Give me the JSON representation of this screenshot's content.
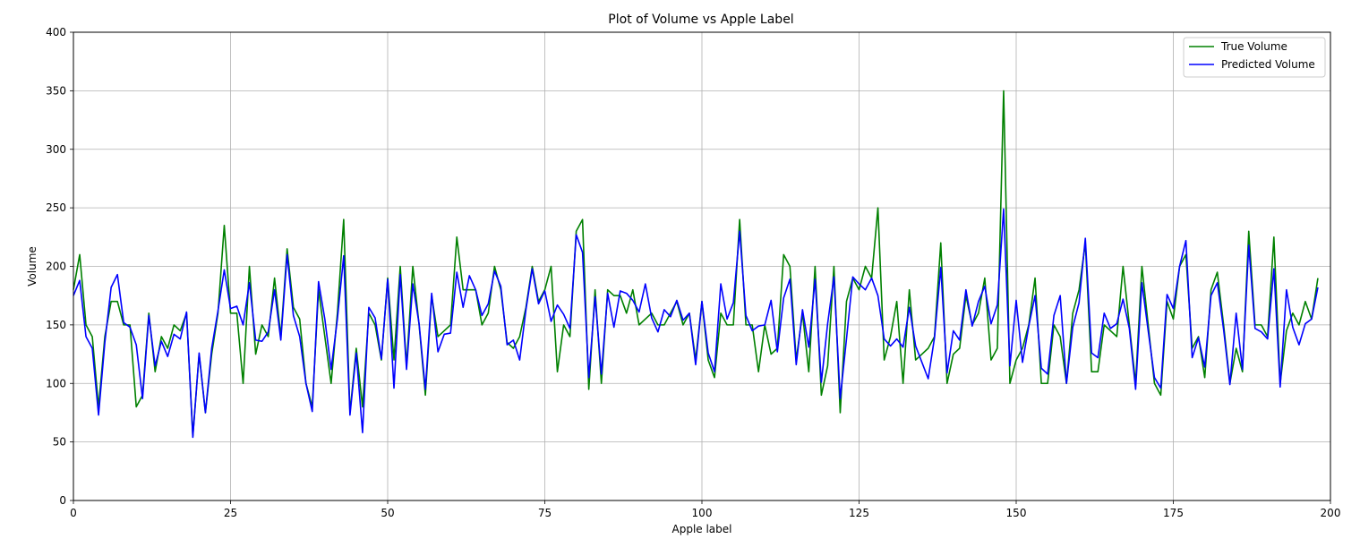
{
  "chart_data": {
    "type": "line",
    "title": "Plot of Volume vs Apple Label",
    "xlabel": "Apple label",
    "ylabel": "Volume",
    "xlim": [
      0,
      200
    ],
    "ylim": [
      0,
      400
    ],
    "xticks": [
      0,
      25,
      50,
      75,
      100,
      125,
      150,
      175,
      200
    ],
    "yticks": [
      0,
      50,
      100,
      150,
      200,
      250,
      300,
      350,
      400
    ],
    "grid": true,
    "legend_position": "top-right",
    "series": [
      {
        "name": "True Volume",
        "color": "#008000",
        "values": [
          180,
          210,
          150,
          140,
          80,
          140,
          170,
          170,
          150,
          150,
          80,
          90,
          160,
          110,
          140,
          130,
          150,
          145,
          160,
          55,
          125,
          75,
          125,
          160,
          235,
          160,
          160,
          100,
          200,
          125,
          150,
          140,
          190,
          140,
          215,
          165,
          155,
          100,
          80,
          180,
          140,
          100,
          160,
          240,
          75,
          130,
          80,
          160,
          150,
          120,
          190,
          120,
          200,
          115,
          200,
          150,
          90,
          175,
          140,
          145,
          150,
          225,
          180,
          180,
          180,
          150,
          160,
          200,
          180,
          135,
          130,
          140,
          165,
          200,
          170,
          180,
          200,
          110,
          150,
          140,
          230,
          240,
          95,
          180,
          100,
          180,
          175,
          175,
          160,
          180,
          150,
          155,
          160,
          150,
          150,
          160,
          170,
          150,
          160,
          120,
          170,
          120,
          105,
          160,
          150,
          150,
          240,
          150,
          150,
          110,
          150,
          125,
          130,
          210,
          200,
          120,
          160,
          110,
          200,
          90,
          115,
          200,
          75,
          170,
          190,
          180,
          200,
          190,
          250,
          120,
          140,
          170,
          100,
          180,
          120,
          125,
          130,
          140,
          220,
          100,
          125,
          130,
          175,
          150,
          160,
          190,
          120,
          130,
          350,
          100,
          120,
          130,
          150,
          190,
          100,
          100,
          150,
          140,
          100,
          160,
          180,
          220,
          110,
          110,
          150,
          145,
          140,
          200,
          150,
          100,
          200,
          150,
          100,
          90,
          170,
          155,
          200,
          210,
          130,
          140,
          105,
          180,
          195,
          150,
          100,
          130,
          110,
          230,
          150,
          150,
          140,
          225,
          100,
          145,
          160,
          150,
          170,
          155,
          190
        ]
      },
      {
        "name": "Predicted Volume",
        "color": "#0000ff",
        "values": [
          175,
          188,
          140,
          130,
          73,
          135,
          182,
          193,
          152,
          148,
          133,
          87,
          158,
          115,
          136,
          123,
          142,
          138,
          161,
          54,
          126,
          75,
          130,
          162,
          197,
          164,
          166,
          150,
          186,
          137,
          136,
          144,
          180,
          137,
          210,
          158,
          140,
          100,
          76,
          187,
          155,
          112,
          155,
          209,
          73,
          126,
          58,
          165,
          156,
          121,
          189,
          96,
          193,
          112,
          185,
          151,
          95,
          177,
          127,
          142,
          143,
          195,
          165,
          192,
          180,
          158,
          168,
          196,
          183,
          133,
          137,
          120,
          163,
          198,
          168,
          179,
          153,
          167,
          159,
          147,
          227,
          212,
          105,
          174,
          108,
          177,
          148,
          179,
          177,
          171,
          161,
          185,
          156,
          144,
          163,
          157,
          171,
          154,
          160,
          116,
          170,
          126,
          110,
          185,
          155,
          169,
          230,
          158,
          145,
          149,
          150,
          171,
          127,
          173,
          189,
          116,
          163,
          131,
          189,
          101,
          151,
          191,
          87,
          138,
          191,
          185,
          180,
          190,
          175,
          138,
          132,
          138,
          131,
          165,
          132,
          118,
          104,
          139,
          199,
          109,
          145,
          137,
          180,
          149,
          170,
          183,
          151,
          167,
          249,
          115,
          171,
          118,
          149,
          175,
          113,
          108,
          158,
          175,
          100,
          148,
          169,
          224,
          126,
          122,
          160,
          147,
          151,
          172,
          147,
          95,
          186,
          145,
          105,
          96,
          176,
          164,
          200,
          222,
          122,
          139,
          114,
          175,
          186,
          146,
          99,
          160,
          112,
          218,
          147,
          144,
          138,
          198,
          97,
          180,
          148,
          133,
          151,
          155,
          182
        ]
      }
    ]
  }
}
